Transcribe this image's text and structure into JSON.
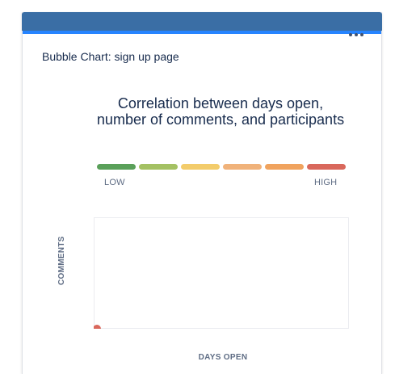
{
  "gadget": {
    "title": "Bubble Chart: sign up page",
    "header_color": "#3a6ea5",
    "accent_color": "#2684ff",
    "menu_icon": "more-horizontal-icon"
  },
  "chart_data": {
    "type": "scatter",
    "title": "Correlation between days open, number of comments, and participants",
    "xlabel": "DAYS OPEN",
    "ylabel": "COMMENTS",
    "legend": {
      "low_label": "LOW",
      "high_label": "HIGH",
      "colors": [
        "#5aa05a",
        "#a4c163",
        "#f3cc6b",
        "#f0b27a",
        "#f0a35e",
        "#d9685c"
      ]
    },
    "series": [
      {
        "points": [
          {
            "x": 0,
            "y": 0,
            "color": "#d9685c"
          }
        ]
      }
    ],
    "grid": false
  }
}
